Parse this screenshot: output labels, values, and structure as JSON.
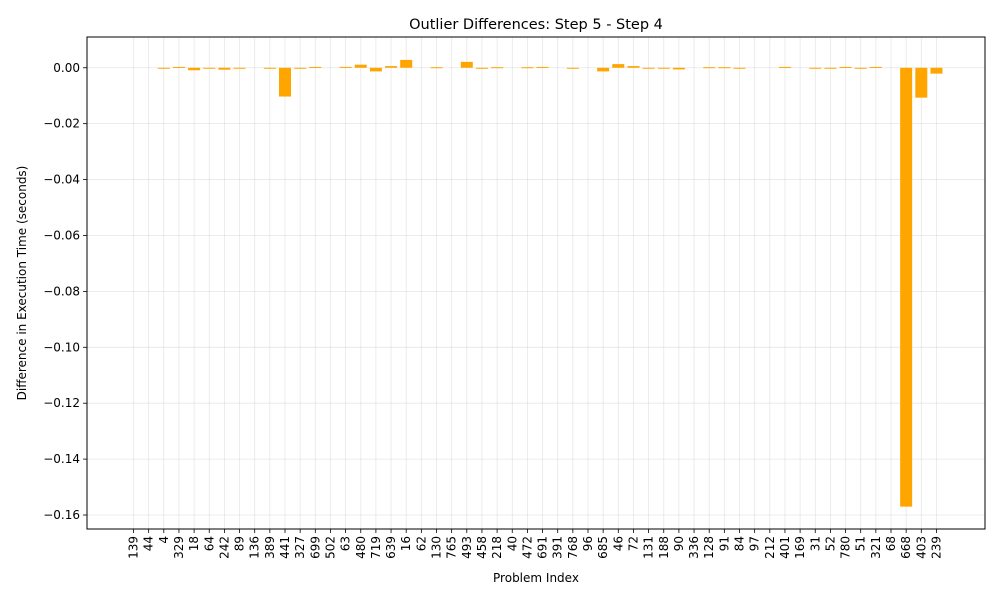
{
  "chart_data": {
    "type": "bar",
    "title": "Outlier Differences: Step 5 - Step 4",
    "xlabel": "Problem Index",
    "ylabel": "Difference in Execution Time (seconds)",
    "ylim": [
      -0.165,
      0.011
    ],
    "yticks": [
      0.0,
      -0.02,
      -0.04,
      -0.06,
      -0.08,
      -0.1,
      -0.12,
      -0.14,
      -0.16
    ],
    "ytick_labels": [
      "0.00",
      "−0.02",
      "−0.04",
      "−0.06",
      "−0.08",
      "−0.10",
      "−0.12",
      "−0.14",
      "−0.16"
    ],
    "grid": true,
    "bar_color": "#FFA500",
    "categories": [
      "139",
      "44",
      "4",
      "329",
      "18",
      "64",
      "242",
      "89",
      "136",
      "389",
      "441",
      "327",
      "699",
      "502",
      "63",
      "480",
      "719",
      "639",
      "16",
      "62",
      "130",
      "765",
      "493",
      "458",
      "218",
      "40",
      "472",
      "691",
      "391",
      "768",
      "96",
      "685",
      "46",
      "72",
      "131",
      "188",
      "90",
      "336",
      "128",
      "91",
      "84",
      "97",
      "212",
      "401",
      "169",
      "31",
      "52",
      "780",
      "51",
      "321",
      "68",
      "668",
      "403",
      "239"
    ],
    "values": [
      0.0,
      0.0,
      -0.0002,
      0.0003,
      -0.0009,
      -0.0002,
      -0.0007,
      -0.0002,
      0.0,
      -0.0002,
      -0.0103,
      -0.0002,
      0.0003,
      0.0,
      0.0003,
      0.0011,
      -0.0013,
      0.0006,
      0.0028,
      0.0,
      0.0002,
      0.0,
      0.0021,
      -0.0002,
      0.0002,
      0.0,
      0.0002,
      0.0003,
      0.0,
      -0.0002,
      0.0,
      -0.0013,
      0.0013,
      0.0006,
      -0.0002,
      -0.0002,
      -0.0006,
      0.0,
      0.0002,
      0.0002,
      -0.0002,
      0.0,
      0.0,
      0.0003,
      0.0,
      -0.0002,
      -0.0002,
      0.0003,
      -0.0002,
      0.0003,
      0.0,
      -0.157,
      -0.0107,
      -0.0021
    ]
  }
}
